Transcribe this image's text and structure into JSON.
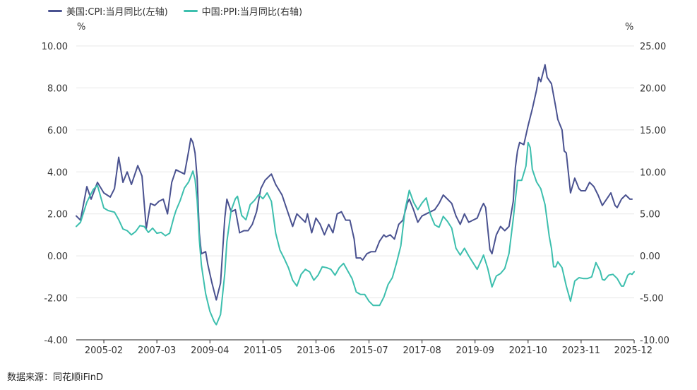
{
  "legend": {
    "series1": "美国:CPI:当月同比(左轴)",
    "series2": "中国:PPI:当月同比(右轴)"
  },
  "source_text": "数据来源：同花顺iFinD",
  "colors": {
    "series1": "#4a5290",
    "series2": "#3dbfae",
    "grid": "#e8e8e8",
    "axis": "#222222"
  },
  "chart_data": {
    "type": "line",
    "x_unit": "month",
    "x_range": [
      "2004-01",
      "2025-12"
    ],
    "xticks": [
      "2005-02",
      "2007-03",
      "2009-04",
      "2011-05",
      "2013-06",
      "2015-07",
      "2017-08",
      "2019-09",
      "2021-10",
      "2023-11",
      "2025-12"
    ],
    "y_left": {
      "label": "%",
      "ylim": [
        -4,
        10
      ],
      "ticks": [
        "-4.00",
        "-2.00",
        "0.00",
        "2.00",
        "4.00",
        "6.00",
        "8.00",
        "10.00"
      ]
    },
    "y_right": {
      "label": "%",
      "ylim": [
        -10,
        25
      ],
      "ticks": [
        "-10.00",
        "-5.00",
        "0.00",
        "5.00",
        "10.00",
        "15.00",
        "20.00",
        "25.00"
      ]
    },
    "series": [
      {
        "name": "美国:CPI:当月同比(左轴)",
        "axis": "left",
        "points": [
          [
            "2004-01",
            1.9
          ],
          [
            "2004-03",
            1.7
          ],
          [
            "2004-06",
            3.3
          ],
          [
            "2004-08",
            2.7
          ],
          [
            "2004-11",
            3.5
          ],
          [
            "2005-02",
            3.0
          ],
          [
            "2005-05",
            2.8
          ],
          [
            "2005-07",
            3.2
          ],
          [
            "2005-09",
            4.7
          ],
          [
            "2005-11",
            3.5
          ],
          [
            "2006-01",
            4.0
          ],
          [
            "2006-03",
            3.4
          ],
          [
            "2006-06",
            4.3
          ],
          [
            "2006-08",
            3.8
          ],
          [
            "2006-10",
            1.3
          ],
          [
            "2006-12",
            2.5
          ],
          [
            "2007-02",
            2.4
          ],
          [
            "2007-04",
            2.6
          ],
          [
            "2007-06",
            2.7
          ],
          [
            "2007-08",
            2.0
          ],
          [
            "2007-10",
            3.5
          ],
          [
            "2007-12",
            4.1
          ],
          [
            "2008-02",
            4.0
          ],
          [
            "2008-04",
            3.9
          ],
          [
            "2008-06",
            5.0
          ],
          [
            "2008-07",
            5.6
          ],
          [
            "2008-08",
            5.4
          ],
          [
            "2008-09",
            4.9
          ],
          [
            "2008-10",
            3.7
          ],
          [
            "2008-11",
            1.1
          ],
          [
            "2008-12",
            0.1
          ],
          [
            "2009-02",
            0.2
          ],
          [
            "2009-03",
            -0.4
          ],
          [
            "2009-05",
            -1.3
          ],
          [
            "2009-07",
            -2.1
          ],
          [
            "2009-09",
            -1.3
          ],
          [
            "2009-11",
            1.8
          ],
          [
            "2009-12",
            2.7
          ],
          [
            "2010-02",
            2.1
          ],
          [
            "2010-04",
            2.2
          ],
          [
            "2010-06",
            1.1
          ],
          [
            "2010-08",
            1.2
          ],
          [
            "2010-10",
            1.2
          ],
          [
            "2010-12",
            1.5
          ],
          [
            "2011-02",
            2.1
          ],
          [
            "2011-04",
            3.2
          ],
          [
            "2011-06",
            3.6
          ],
          [
            "2011-09",
            3.9
          ],
          [
            "2011-11",
            3.4
          ],
          [
            "2012-02",
            2.9
          ],
          [
            "2012-04",
            2.3
          ],
          [
            "2012-06",
            1.7
          ],
          [
            "2012-07",
            1.4
          ],
          [
            "2012-09",
            2.0
          ],
          [
            "2012-11",
            1.8
          ],
          [
            "2013-01",
            1.6
          ],
          [
            "2013-02",
            2.0
          ],
          [
            "2013-04",
            1.1
          ],
          [
            "2013-06",
            1.8
          ],
          [
            "2013-08",
            1.5
          ],
          [
            "2013-10",
            1.0
          ],
          [
            "2013-12",
            1.5
          ],
          [
            "2014-02",
            1.1
          ],
          [
            "2014-04",
            2.0
          ],
          [
            "2014-06",
            2.1
          ],
          [
            "2014-08",
            1.7
          ],
          [
            "2014-10",
            1.7
          ],
          [
            "2014-12",
            0.8
          ],
          [
            "2015-01",
            -0.1
          ],
          [
            "2015-03",
            -0.1
          ],
          [
            "2015-04",
            -0.2
          ],
          [
            "2015-06",
            0.1
          ],
          [
            "2015-08",
            0.2
          ],
          [
            "2015-10",
            0.2
          ],
          [
            "2015-12",
            0.7
          ],
          [
            "2016-02",
            1.0
          ],
          [
            "2016-03",
            0.9
          ],
          [
            "2016-05",
            1.0
          ],
          [
            "2016-07",
            0.8
          ],
          [
            "2016-09",
            1.5
          ],
          [
            "2016-11",
            1.7
          ],
          [
            "2017-01",
            2.5
          ],
          [
            "2017-02",
            2.7
          ],
          [
            "2017-04",
            2.2
          ],
          [
            "2017-06",
            1.6
          ],
          [
            "2017-08",
            1.9
          ],
          [
            "2017-10",
            2.0
          ],
          [
            "2017-12",
            2.1
          ],
          [
            "2018-02",
            2.2
          ],
          [
            "2018-04",
            2.5
          ],
          [
            "2018-06",
            2.9
          ],
          [
            "2018-08",
            2.7
          ],
          [
            "2018-10",
            2.5
          ],
          [
            "2018-12",
            1.9
          ],
          [
            "2019-02",
            1.5
          ],
          [
            "2019-04",
            2.0
          ],
          [
            "2019-06",
            1.6
          ],
          [
            "2019-08",
            1.7
          ],
          [
            "2019-10",
            1.8
          ],
          [
            "2019-12",
            2.3
          ],
          [
            "2020-01",
            2.5
          ],
          [
            "2020-02",
            2.3
          ],
          [
            "2020-04",
            0.3
          ],
          [
            "2020-05",
            0.1
          ],
          [
            "2020-07",
            1.0
          ],
          [
            "2020-09",
            1.4
          ],
          [
            "2020-11",
            1.2
          ],
          [
            "2021-01",
            1.4
          ],
          [
            "2021-03",
            2.6
          ],
          [
            "2021-04",
            4.2
          ],
          [
            "2021-05",
            5.0
          ],
          [
            "2021-06",
            5.4
          ],
          [
            "2021-08",
            5.3
          ],
          [
            "2021-10",
            6.2
          ],
          [
            "2021-12",
            7.0
          ],
          [
            "2022-02",
            7.9
          ],
          [
            "2022-03",
            8.5
          ],
          [
            "2022-04",
            8.3
          ],
          [
            "2022-06",
            9.1
          ],
          [
            "2022-07",
            8.5
          ],
          [
            "2022-09",
            8.2
          ],
          [
            "2022-11",
            7.1
          ],
          [
            "2022-12",
            6.5
          ],
          [
            "2023-02",
            6.0
          ],
          [
            "2023-03",
            5.0
          ],
          [
            "2023-04",
            4.9
          ],
          [
            "2023-06",
            3.0
          ],
          [
            "2023-08",
            3.7
          ],
          [
            "2023-10",
            3.2
          ],
          [
            "2023-11",
            3.1
          ],
          [
            "2024-01",
            3.1
          ],
          [
            "2024-03",
            3.5
          ],
          [
            "2024-05",
            3.3
          ],
          [
            "2024-07",
            2.9
          ],
          [
            "2024-09",
            2.4
          ],
          [
            "2024-11",
            2.7
          ],
          [
            "2025-01",
            3.0
          ],
          [
            "2025-03",
            2.4
          ],
          [
            "2025-04",
            2.3
          ],
          [
            "2025-06",
            2.7
          ],
          [
            "2025-08",
            2.9
          ],
          [
            "2025-10",
            2.7
          ],
          [
            "2025-11",
            2.7
          ]
        ]
      },
      {
        "name": "中国:PPI:当月同比(右轴)",
        "axis": "right",
        "points": [
          [
            "2004-01",
            3.5
          ],
          [
            "2004-03",
            4.0
          ],
          [
            "2004-06",
            6.4
          ],
          [
            "2004-09",
            7.9
          ],
          [
            "2004-11",
            8.4
          ],
          [
            "2005-02",
            5.7
          ],
          [
            "2005-04",
            5.4
          ],
          [
            "2005-07",
            5.2
          ],
          [
            "2005-09",
            4.3
          ],
          [
            "2005-11",
            3.2
          ],
          [
            "2006-01",
            3.0
          ],
          [
            "2006-03",
            2.5
          ],
          [
            "2006-05",
            2.9
          ],
          [
            "2006-07",
            3.6
          ],
          [
            "2006-09",
            3.5
          ],
          [
            "2006-11",
            2.8
          ],
          [
            "2007-01",
            3.3
          ],
          [
            "2007-03",
            2.7
          ],
          [
            "2007-05",
            2.8
          ],
          [
            "2007-07",
            2.4
          ],
          [
            "2007-09",
            2.7
          ],
          [
            "2007-11",
            4.6
          ],
          [
            "2007-12",
            5.4
          ],
          [
            "2008-02",
            6.6
          ],
          [
            "2008-04",
            8.1
          ],
          [
            "2008-06",
            8.8
          ],
          [
            "2008-08",
            10.1
          ],
          [
            "2008-09",
            9.1
          ],
          [
            "2008-10",
            6.6
          ],
          [
            "2008-11",
            2.0
          ],
          [
            "2008-12",
            -1.1
          ],
          [
            "2009-02",
            -4.5
          ],
          [
            "2009-04",
            -6.6
          ],
          [
            "2009-06",
            -7.8
          ],
          [
            "2009-07",
            -8.2
          ],
          [
            "2009-09",
            -7.0
          ],
          [
            "2009-11",
            -2.1
          ],
          [
            "2009-12",
            1.7
          ],
          [
            "2010-02",
            5.4
          ],
          [
            "2010-04",
            6.8
          ],
          [
            "2010-05",
            7.1
          ],
          [
            "2010-07",
            4.8
          ],
          [
            "2010-09",
            4.3
          ],
          [
            "2010-11",
            6.1
          ],
          [
            "2011-01",
            6.6
          ],
          [
            "2011-03",
            7.3
          ],
          [
            "2011-05",
            6.8
          ],
          [
            "2011-07",
            7.5
          ],
          [
            "2011-09",
            6.5
          ],
          [
            "2011-11",
            2.7
          ],
          [
            "2012-01",
            0.7
          ],
          [
            "2012-03",
            -0.3
          ],
          [
            "2012-05",
            -1.4
          ],
          [
            "2012-07",
            -2.9
          ],
          [
            "2012-09",
            -3.6
          ],
          [
            "2012-11",
            -2.2
          ],
          [
            "2013-01",
            -1.6
          ],
          [
            "2013-03",
            -1.9
          ],
          [
            "2013-05",
            -2.9
          ],
          [
            "2013-07",
            -2.3
          ],
          [
            "2013-09",
            -1.3
          ],
          [
            "2013-11",
            -1.4
          ],
          [
            "2014-01",
            -1.6
          ],
          [
            "2014-03",
            -2.3
          ],
          [
            "2014-05",
            -1.4
          ],
          [
            "2014-07",
            -0.9
          ],
          [
            "2014-09",
            -1.8
          ],
          [
            "2014-11",
            -2.7
          ],
          [
            "2015-01",
            -4.3
          ],
          [
            "2015-03",
            -4.6
          ],
          [
            "2015-05",
            -4.6
          ],
          [
            "2015-07",
            -5.4
          ],
          [
            "2015-09",
            -5.9
          ],
          [
            "2015-12",
            -5.9
          ],
          [
            "2016-02",
            -4.9
          ],
          [
            "2016-04",
            -3.4
          ],
          [
            "2016-06",
            -2.6
          ],
          [
            "2016-08",
            -0.8
          ],
          [
            "2016-10",
            1.2
          ],
          [
            "2016-12",
            5.5
          ],
          [
            "2017-02",
            7.8
          ],
          [
            "2017-04",
            6.4
          ],
          [
            "2017-06",
            5.5
          ],
          [
            "2017-08",
            6.3
          ],
          [
            "2017-10",
            6.9
          ],
          [
            "2017-12",
            4.9
          ],
          [
            "2018-02",
            3.7
          ],
          [
            "2018-04",
            3.4
          ],
          [
            "2018-06",
            4.7
          ],
          [
            "2018-08",
            4.1
          ],
          [
            "2018-10",
            3.3
          ],
          [
            "2018-12",
            0.9
          ],
          [
            "2019-02",
            0.1
          ],
          [
            "2019-04",
            0.9
          ],
          [
            "2019-06",
            0.0
          ],
          [
            "2019-08",
            -0.8
          ],
          [
            "2019-10",
            -1.6
          ],
          [
            "2019-12",
            -0.5
          ],
          [
            "2020-01",
            0.1
          ],
          [
            "2020-03",
            -1.5
          ],
          [
            "2020-05",
            -3.7
          ],
          [
            "2020-07",
            -2.4
          ],
          [
            "2020-09",
            -2.1
          ],
          [
            "2020-11",
            -1.5
          ],
          [
            "2021-01",
            0.3
          ],
          [
            "2021-03",
            4.4
          ],
          [
            "2021-05",
            9.0
          ],
          [
            "2021-07",
            9.0
          ],
          [
            "2021-09",
            10.7
          ],
          [
            "2021-10",
            13.5
          ],
          [
            "2021-11",
            12.9
          ],
          [
            "2021-12",
            10.3
          ],
          [
            "2022-02",
            8.8
          ],
          [
            "2022-04",
            8.0
          ],
          [
            "2022-06",
            6.1
          ],
          [
            "2022-08",
            2.3
          ],
          [
            "2022-09",
            0.9
          ],
          [
            "2022-10",
            -1.3
          ],
          [
            "2022-11",
            -1.3
          ],
          [
            "2022-12",
            -0.7
          ],
          [
            "2023-02",
            -1.4
          ],
          [
            "2023-04",
            -3.6
          ],
          [
            "2023-06",
            -5.4
          ],
          [
            "2023-08",
            -3.0
          ],
          [
            "2023-10",
            -2.6
          ],
          [
            "2023-12",
            -2.7
          ],
          [
            "2024-02",
            -2.7
          ],
          [
            "2024-04",
            -2.5
          ],
          [
            "2024-06",
            -0.8
          ],
          [
            "2024-08",
            -1.8
          ],
          [
            "2024-09",
            -2.8
          ],
          [
            "2024-10",
            -2.9
          ],
          [
            "2024-12",
            -2.3
          ],
          [
            "2025-02",
            -2.2
          ],
          [
            "2025-04",
            -2.7
          ],
          [
            "2025-06",
            -3.6
          ],
          [
            "2025-07",
            -3.6
          ],
          [
            "2025-09",
            -2.3
          ],
          [
            "2025-10",
            -2.1
          ],
          [
            "2025-11",
            -2.2
          ],
          [
            "2025-12",
            -1.9
          ]
        ]
      }
    ]
  }
}
